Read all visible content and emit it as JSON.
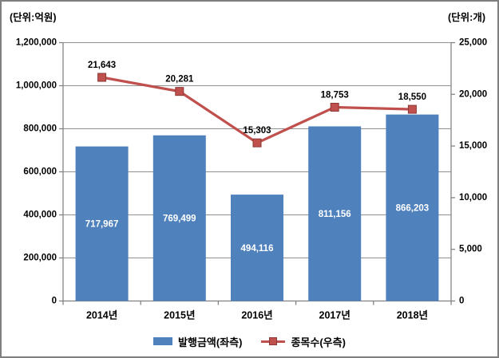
{
  "chart_data": {
    "type": "bar+line",
    "categories": [
      "2014년",
      "2015년",
      "2016년",
      "2017년",
      "2018년"
    ],
    "series": [
      {
        "name": "발행금액(좌측)",
        "type": "bar",
        "axis": "left",
        "values": [
          717967,
          769499,
          494116,
          811156,
          866203
        ],
        "labels": [
          "717,967",
          "769,499",
          "494,116",
          "811,156",
          "866,203"
        ],
        "color": "#4F81BD",
        "label_color": "#FFFFFF"
      },
      {
        "name": "종목수(우측)",
        "type": "line",
        "axis": "right",
        "values": [
          21643,
          20281,
          15303,
          18753,
          18550
        ],
        "labels": [
          "21,643",
          "20,281",
          "15,303",
          "18,753",
          "18,550"
        ],
        "color": "#C0504D",
        "marker": "square",
        "label_color": "#000000"
      }
    ],
    "axes": {
      "left": {
        "title": "(단위:억원)",
        "min": 0,
        "max": 1200000,
        "step": 200000,
        "ticks": [
          "1,200,000",
          "1,000,000",
          "800,000",
          "600,000",
          "400,000",
          "200,000",
          "0"
        ]
      },
      "right": {
        "title": "(단위:개)",
        "min": 0,
        "max": 25000,
        "step": 5000,
        "ticks": [
          "25,000",
          "20,000",
          "15,000",
          "10,000",
          "5,000",
          "0"
        ]
      }
    },
    "grid": true,
    "legend_position": "bottom"
  },
  "colors": {
    "bar": "#4F81BD",
    "line": "#C0504D",
    "marker_border": "#8C3836",
    "grid": "#909090",
    "axis": "#808080",
    "border": "#7F7F7F",
    "bar_label": "#FFFFFF",
    "text": "#000000",
    "background": "#FFFFFF"
  }
}
